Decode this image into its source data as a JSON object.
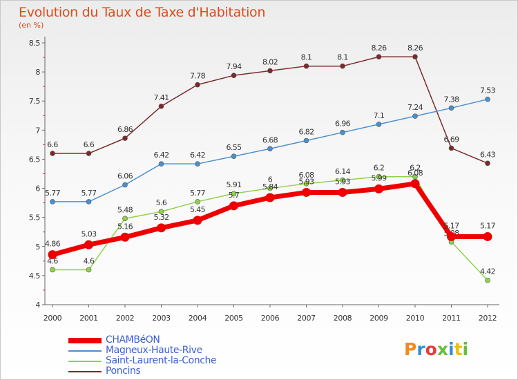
{
  "header": {
    "title": "Evolution du Taux de Taxe d'Habitation",
    "unit": "(en %)"
  },
  "logo": {
    "text": "Proxiti",
    "colors": [
      "#f08a1c",
      "#2c8fd6",
      "#e53c3c",
      "#6cbb3c",
      "#2c8fd6",
      "#f0c000",
      "#6cbb3c"
    ]
  },
  "chart_data": {
    "type": "line",
    "x": [
      "2000",
      "2001",
      "2002",
      "2003",
      "2004",
      "2005",
      "2006",
      "2007",
      "2008",
      "2009",
      "2010",
      "2011",
      "2012"
    ],
    "ylim": [
      4,
      8.5
    ],
    "yticks": [
      "4",
      "4.5",
      "5",
      "5.5",
      "6",
      "6.5",
      "7",
      "7.5",
      "8",
      "8.5"
    ],
    "legend_position": "bottom-left",
    "series": [
      {
        "name": "Poncins",
        "color": "#7a2a2a",
        "values": [
          6.6,
          6.6,
          6.86,
          7.41,
          7.78,
          7.94,
          8.02,
          8.1,
          8.1,
          8.26,
          8.26,
          6.69,
          6.43
        ],
        "labels": [
          "6.6",
          "6.6",
          "6.86",
          "7.41",
          "7.78",
          "7.94",
          "8.02",
          "8.1",
          "8.1",
          "8.26",
          "8.26",
          "6.69",
          "6.43"
        ]
      },
      {
        "name": "Magneux-Haute-Rive",
        "color": "#4a90d0",
        "values": [
          5.77,
          5.77,
          6.06,
          6.42,
          6.42,
          6.55,
          6.68,
          6.82,
          6.96,
          7.1,
          7.24,
          7.38,
          7.53
        ],
        "labels": [
          "5.77",
          "5.77",
          "6.06",
          "6.42",
          "6.42",
          "6.55",
          "6.68",
          "6.82",
          "6.96",
          "7.1",
          "7.24",
          "7.38",
          "7.53"
        ]
      },
      {
        "name": "Saint-Laurent-la-Conche",
        "color": "#8fd24a",
        "values": [
          4.6,
          4.6,
          5.48,
          5.6,
          5.77,
          5.91,
          6,
          6.08,
          6.14,
          6.2,
          6.2,
          5.08,
          4.42
        ],
        "labels": [
          "4.6",
          "4.6",
          "5.48",
          "5.6",
          "5.77",
          "5.91",
          "6",
          "6.08",
          "6.14",
          "6.2",
          "6.2",
          "5.08",
          "4.42"
        ]
      },
      {
        "name": "CHAMBéON",
        "color": "#ee0000",
        "values": [
          4.86,
          5.03,
          5.16,
          5.32,
          5.45,
          5.7,
          5.84,
          5.93,
          5.93,
          5.99,
          6.08,
          5.17,
          5.17
        ],
        "labels": [
          "4.86",
          "5.03",
          "5.16",
          "5.32",
          "5.45",
          "5.7",
          "5.84",
          "5.93",
          "5.93",
          "5.99",
          "6.08",
          "5.17",
          "5.17"
        ]
      }
    ]
  },
  "legend": {
    "items": [
      {
        "label": "CHAMBéON",
        "color": "#ee0000",
        "thick": true
      },
      {
        "label": "Magneux-Haute-Rive",
        "color": "#4a90d0",
        "thick": false
      },
      {
        "label": "Saint-Laurent-la-Conche",
        "color": "#8fd24a",
        "thick": false
      },
      {
        "label": "Poncins",
        "color": "#7a2a2a",
        "thick": false
      }
    ]
  }
}
